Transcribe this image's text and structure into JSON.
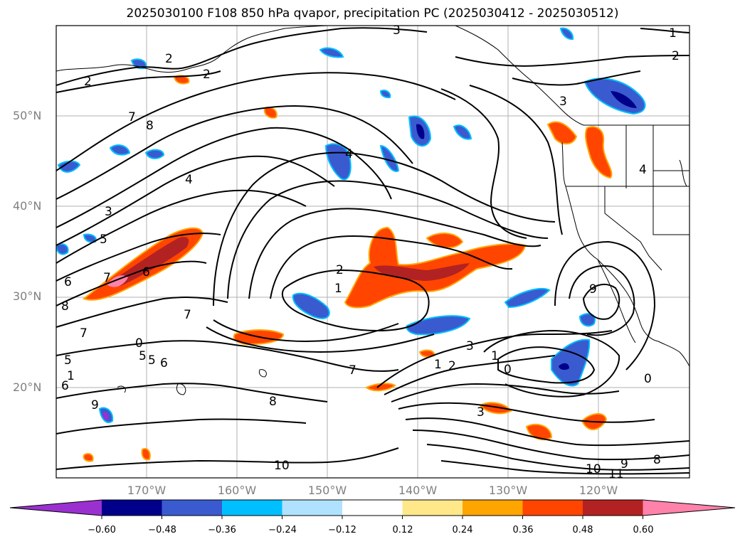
{
  "title": "2025030100 F108 850 hPa qvapor, precipitation PC (2025030412 - 2025030512)",
  "lat_labels": [
    "50°N",
    "40°N",
    "30°N",
    "20°N"
  ],
  "lon_labels": [
    "170°W",
    "160°W",
    "150°W",
    "140°W",
    "130°W",
    "120°W"
  ],
  "colorbar": {
    "ticks": [
      "−0.60",
      "−0.48",
      "−0.36",
      "−0.24",
      "−0.12",
      "0.12",
      "0.24",
      "0.36",
      "0.48",
      "0.60"
    ],
    "colors": [
      "#9b30d0",
      "#00008b",
      "#3a5bd0",
      "#00bfff",
      "#b0e2ff",
      "#ffffff",
      "#ffe88a",
      "#ffa500",
      "#ff4500",
      "#b22222",
      "#ff82ab"
    ]
  },
  "contour_labels": [
    "1",
    "2",
    "2",
    "2",
    "2",
    "3",
    "3",
    "3",
    "4",
    "4",
    "5",
    "5",
    "6",
    "6",
    "6",
    "7",
    "7",
    "7",
    "8",
    "8",
    "9",
    "9",
    "10",
    "10",
    "11",
    "0",
    "0",
    "1",
    "1",
    "2",
    "3",
    "4",
    "8",
    "9",
    "7",
    "5",
    "6",
    "7",
    "8",
    "1",
    "2",
    "3",
    "0",
    "1",
    "5"
  ]
}
